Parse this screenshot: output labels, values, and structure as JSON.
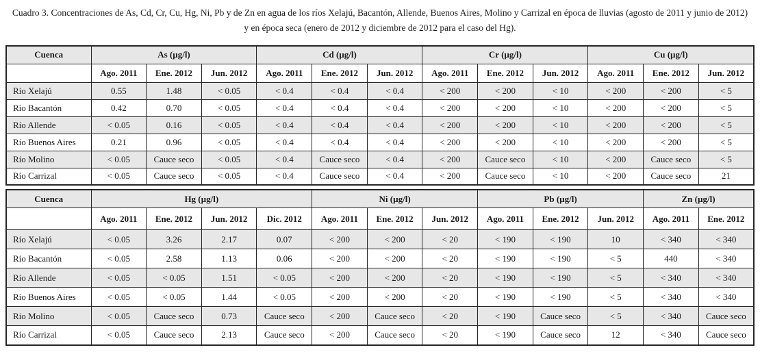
{
  "title": "Cuadro 3. Concentraciones de As, Cd, Cr, Cu, Hg, Ni, Pb y de Zn en agua de los ríos Xelajú, Bacantón, Allende, Buenos Aires, Molino y Carrizal en época de lluvias (agosto de 2011 y junio de 2012) y en época seca (enero de 2012 y diciembre de 2012 para el caso del Hg).",
  "styles": {
    "header_bg": "#e7e7e7",
    "row_alt_bg": "#e7e7e7",
    "border_color": "#262626",
    "text_color": "#1a1a1a"
  },
  "tables": [
    {
      "id": "as-cd-cr-cu",
      "corner_label": "Cuenca",
      "groups": [
        {
          "label": "As (µg/l)",
          "sub": [
            "Ago. 2011",
            "Ene. 2012",
            "Jun. 2012"
          ]
        },
        {
          "label": "Cd (µg/l)",
          "sub": [
            "Ago. 2011",
            "Ene. 2012",
            "Jun. 2012"
          ]
        },
        {
          "label": "Cr (µg/l)",
          "sub": [
            "Ago. 2011",
            "Ene. 2012",
            "Jun. 2012"
          ]
        },
        {
          "label": "Cu (µg/l)",
          "sub": [
            "Ago. 2011",
            "Ene. 2012",
            "Jun. 2012"
          ]
        }
      ],
      "rows": [
        {
          "label": "Río Xelajú",
          "values": [
            "0.55",
            "1.48",
            "< 0.05",
            "< 0.4",
            "< 0.4",
            "< 0.4",
            "< 200",
            "< 200",
            "< 10",
            "< 200",
            "< 200",
            "< 5"
          ]
        },
        {
          "label": "Río Bacantón",
          "values": [
            "0.42",
            "0.70",
            "< 0.05",
            "< 0.4",
            "< 0.4",
            "< 0.4",
            "< 200",
            "< 200",
            "< 10",
            "< 200",
            "< 200",
            "< 5"
          ]
        },
        {
          "label": "Río Allende",
          "values": [
            "< 0.05",
            "0.16",
            "< 0.05",
            "< 0.4",
            "< 0.4",
            "< 0.4",
            "< 200",
            "< 200",
            "< 10",
            "< 200",
            "< 200",
            "< 5"
          ]
        },
        {
          "label": "Río Buenos Aires",
          "values": [
            "0.21",
            "0.96",
            "< 0.05",
            "< 0.4",
            "< 0.4",
            "< 0.4",
            "< 200",
            "< 200",
            "< 10",
            "< 200",
            "< 200",
            "< 5"
          ]
        },
        {
          "label": "Río Molino",
          "values": [
            "< 0.05",
            "Cauce seco",
            "< 0.05",
            "< 0.4",
            "Cauce seco",
            "< 0.4",
            "< 200",
            "Cauce seco",
            "< 10",
            "< 200",
            "Cauce seco",
            "< 5"
          ]
        },
        {
          "label": "Río Carrizal",
          "values": [
            "< 0.05",
            "Cauce seco",
            "< 0.05",
            "< 0.4",
            "Cauce seco",
            "< 0.4",
            "< 200",
            "Cauce seco",
            "< 10",
            "< 200",
            "Cauce seco",
            "21"
          ]
        }
      ]
    },
    {
      "id": "hg-ni-pb-zn",
      "corner_label": "Cuenca",
      "groups": [
        {
          "label": "Hg (µg/l)",
          "sub": [
            "Ago. 2011",
            "Ene. 2012",
            "Jun. 2012",
            "Dic. 2012"
          ]
        },
        {
          "label": "Ni (µg/l)",
          "sub": [
            "Ago. 2011",
            "Ene. 2012",
            "Jun. 2012"
          ]
        },
        {
          "label": "Pb (µg/l)",
          "sub": [
            "Ago. 2011",
            "Ene. 2012",
            "Jun. 2012"
          ]
        },
        {
          "label": "Zn (µg/l)",
          "sub": [
            "Ago. 2011",
            "Ene. 2012"
          ]
        }
      ],
      "rows": [
        {
          "label": "Río Xelajú",
          "values": [
            "< 0.05",
            "3.26",
            "2.17",
            "0.07",
            "< 200",
            "< 200",
            "< 20",
            "< 190",
            "< 190",
            "10",
            "< 340",
            "< 340"
          ]
        },
        {
          "label": "Río Bacantón",
          "values": [
            "< 0.05",
            "2.58",
            "1.13",
            "0.06",
            "< 200",
            "< 200",
            "< 20",
            "< 190",
            "< 190",
            "< 5",
            "440",
            "< 340"
          ]
        },
        {
          "label": "Río Allende",
          "values": [
            "< 0.05",
            "< 0.05",
            "1.51",
            "< 0.05",
            "< 200",
            "< 200",
            "< 20",
            "< 190",
            "< 190",
            "< 5",
            "< 340",
            "< 340"
          ]
        },
        {
          "label": "Río Buenos Aires",
          "values": [
            "< 0.05",
            "< 0.05",
            "1.44",
            "< 0.05",
            "< 200",
            "< 200",
            "< 20",
            "< 190",
            "< 190",
            "< 5",
            "< 340",
            "< 340"
          ]
        },
        {
          "label": "Río Molino",
          "values": [
            "< 0.05",
            "Cauce seco",
            "0.73",
            "Cauce seco",
            "< 200",
            "Cauce seco",
            "< 20",
            "< 190",
            "Cauce seco",
            "< 5",
            "< 340",
            "Cauce seco"
          ]
        },
        {
          "label": "Río Carrizal",
          "values": [
            "< 0.05",
            "Cauce seco",
            "2.13",
            "Cauce seco",
            "< 200",
            "Cauce seco",
            "< 20",
            "< 190",
            "Cauce seco",
            "12",
            "< 340",
            "Cauce seco"
          ]
        }
      ]
    }
  ]
}
